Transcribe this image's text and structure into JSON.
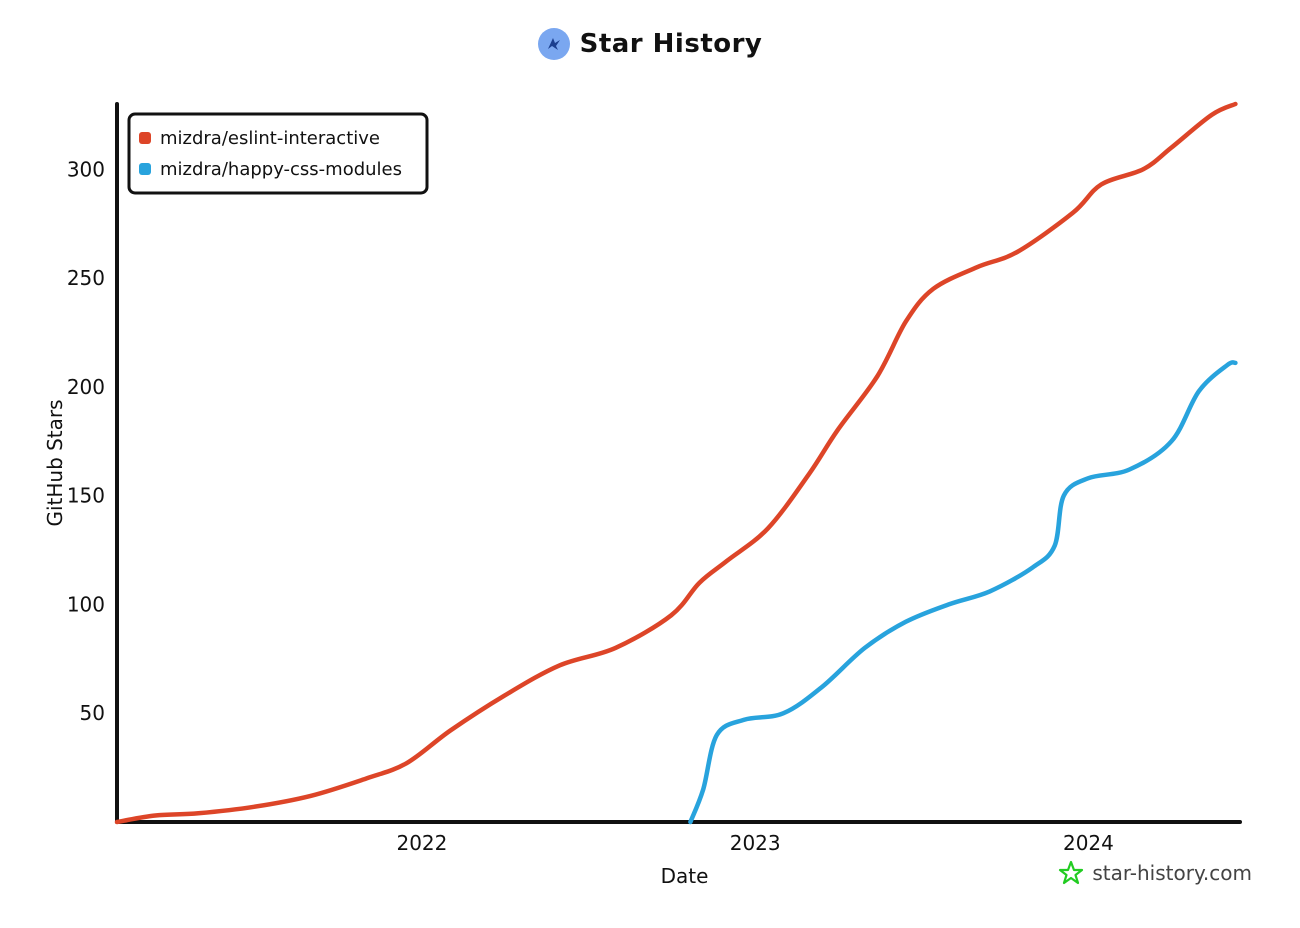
{
  "title": "Star History",
  "watermark": "star-history.com",
  "colors": {
    "series_0": "#dd4528",
    "series_1": "#28a3dd",
    "logo": "#7aa7f0",
    "star": "#22cc22"
  },
  "chart_data": {
    "type": "line",
    "xlabel": "Date",
    "ylabel": "GitHub Stars",
    "x_ticks": [
      "2022",
      "2023",
      "2024"
    ],
    "y_ticks": [
      50,
      100,
      150,
      200,
      250,
      300
    ],
    "xlim": [
      "2021-02-01",
      "2024-06-15"
    ],
    "ylim": [
      0,
      330
    ],
    "legend": "top-left",
    "grid": false,
    "series": [
      {
        "name": "mizdra/eslint-interactive",
        "points": [
          [
            "2021-02-01",
            0
          ],
          [
            "2021-03-15",
            3
          ],
          [
            "2021-05-01",
            4
          ],
          [
            "2021-07-01",
            7
          ],
          [
            "2021-09-01",
            12
          ],
          [
            "2021-11-01",
            20
          ],
          [
            "2021-12-15",
            27
          ],
          [
            "2022-02-01",
            42
          ],
          [
            "2022-04-01",
            58
          ],
          [
            "2022-06-01",
            72
          ],
          [
            "2022-08-01",
            80
          ],
          [
            "2022-10-01",
            95
          ],
          [
            "2022-11-01",
            110
          ],
          [
            "2022-12-01",
            120
          ],
          [
            "2023-01-15",
            135
          ],
          [
            "2023-03-01",
            160
          ],
          [
            "2023-04-01",
            180
          ],
          [
            "2023-05-15",
            205
          ],
          [
            "2023-06-15",
            230
          ],
          [
            "2023-07-15",
            245
          ],
          [
            "2023-09-01",
            255
          ],
          [
            "2023-10-15",
            262
          ],
          [
            "2023-12-15",
            280
          ],
          [
            "2024-01-15",
            293
          ],
          [
            "2024-03-01",
            300
          ],
          [
            "2024-04-01",
            310
          ],
          [
            "2024-05-15",
            325
          ],
          [
            "2024-06-10",
            330
          ]
        ]
      },
      {
        "name": "mizdra/happy-css-modules",
        "points": [
          [
            "2022-10-22",
            0
          ],
          [
            "2022-11-05",
            15
          ],
          [
            "2022-11-20",
            40
          ],
          [
            "2022-12-20",
            47
          ],
          [
            "2023-02-01",
            50
          ],
          [
            "2023-03-15",
            62
          ],
          [
            "2023-05-01",
            80
          ],
          [
            "2023-06-15",
            92
          ],
          [
            "2023-08-01",
            100
          ],
          [
            "2023-09-15",
            106
          ],
          [
            "2023-11-01",
            117
          ],
          [
            "2023-11-25",
            127
          ],
          [
            "2023-12-05",
            150
          ],
          [
            "2024-01-01",
            158
          ],
          [
            "2024-02-15",
            162
          ],
          [
            "2024-04-01",
            175
          ],
          [
            "2024-05-01",
            198
          ],
          [
            "2024-06-01",
            210
          ],
          [
            "2024-06-10",
            211
          ]
        ]
      }
    ]
  }
}
